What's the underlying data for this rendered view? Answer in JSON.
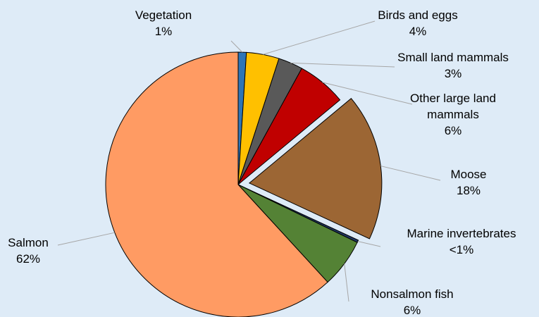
{
  "chart_data": {
    "type": "pie",
    "categories": [
      "Vegetation",
      "Birds and eggs",
      "Small land mammals",
      "Other large land mammals",
      "Moose",
      "Marine invertebrates",
      "Nonsalmon fish",
      "Salmon"
    ],
    "values": [
      1,
      4,
      3,
      6,
      18,
      0.3,
      6,
      62
    ],
    "value_labels": [
      "1%",
      "4%",
      "3%",
      "6%",
      "18%",
      "<1%",
      "6%",
      "62%"
    ],
    "colors": [
      "#2e75b6",
      "#ffc000",
      "#595959",
      "#c00000",
      "#9c6634",
      "#203864",
      "#548235",
      "#ff9b63"
    ]
  }
}
